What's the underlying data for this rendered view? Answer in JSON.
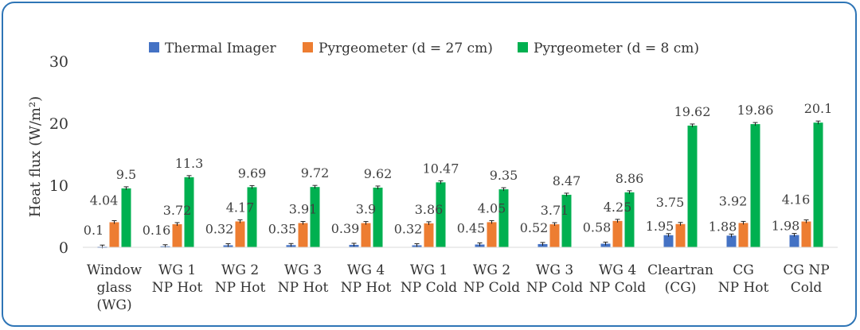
{
  "chart_data": {
    "type": "bar",
    "title": "",
    "ylabel": "Heat flux (W/m²)",
    "xlabel": "",
    "ylim": [
      0,
      30
    ],
    "yticks": [
      0,
      10,
      20,
      30
    ],
    "grid": false,
    "legend_position": "top",
    "error_bars": true,
    "categories": [
      [
        "Window",
        "glass",
        "(WG)"
      ],
      [
        "WG 1",
        "NP Hot"
      ],
      [
        "WG 2",
        "NP Hot"
      ],
      [
        "WG 3",
        "NP Hot"
      ],
      [
        "WG 4",
        "NP Hot"
      ],
      [
        "WG 1",
        "NP Cold"
      ],
      [
        "WG 2",
        "NP Cold"
      ],
      [
        "WG 3",
        "NP Cold"
      ],
      [
        "WG 4",
        "NP Cold"
      ],
      [
        "Cleartran",
        "(CG)"
      ],
      [
        "CG",
        "NP Hot"
      ],
      [
        "CG NP",
        "Cold"
      ]
    ],
    "series": [
      {
        "name": "Thermal Imager",
        "color": "#4472c4",
        "values": [
          0.1,
          0.16,
          0.32,
          0.35,
          0.39,
          0.32,
          0.45,
          0.52,
          0.58,
          1.95,
          1.88,
          1.98
        ],
        "labels": [
          "0.1",
          "0.16",
          "0.32",
          "0.35",
          "0.39",
          "0.32",
          "0.45",
          "0.52",
          "0.58",
          "1.95",
          "1.88",
          "1.98"
        ]
      },
      {
        "name": "Pyrgeometer (d = 27 cm)",
        "color": "#ed7d31",
        "values": [
          4.04,
          3.72,
          4.17,
          3.91,
          3.9,
          3.86,
          4.05,
          3.71,
          4.25,
          3.75,
          3.92,
          4.16
        ],
        "labels": [
          "4.04",
          "3.72",
          "4.17",
          "3.91",
          "3.9",
          "3.86",
          "4.05",
          "3.71",
          "4.25",
          "3.75",
          "3.92",
          "4.16"
        ]
      },
      {
        "name": "Pyrgeometer (d = 8 cm)",
        "color": "#00b050",
        "values": [
          9.5,
          11.3,
          9.69,
          9.72,
          9.62,
          10.47,
          9.35,
          8.47,
          8.86,
          19.62,
          19.86,
          20.1
        ],
        "labels": [
          "9.5",
          "11.3",
          "9.69",
          "9.72",
          "9.62",
          "10.47",
          "9.35",
          "8.47",
          "8.86",
          "19.62",
          "19.86",
          "20.1"
        ]
      }
    ]
  }
}
